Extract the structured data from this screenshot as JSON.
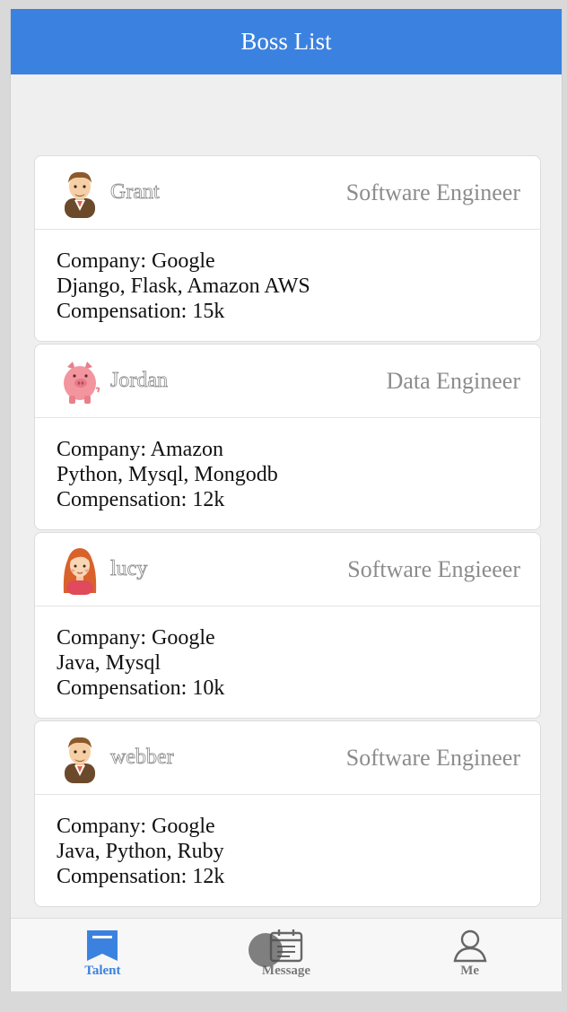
{
  "header": {
    "title": "Boss List"
  },
  "bosses": [
    {
      "name": "Grant",
      "title": "Software Engineer",
      "company": "Company: Google",
      "skills": "Django, Flask, Amazon AWS",
      "compensation": "Compensation: 15k",
      "avatar": "man-avatar-icon"
    },
    {
      "name": "Jordan",
      "title": "Data Engineer",
      "company": "Company: Amazon",
      "skills": "Python, Mysql, Mongodb",
      "compensation": "Compensation: 12k",
      "avatar": "pig-avatar-icon"
    },
    {
      "name": "lucy",
      "title": "Software Engieeer",
      "company": "Company: Google",
      "skills": "Java, Mysql",
      "compensation": "Compensation: 10k",
      "avatar": "woman-avatar-icon"
    },
    {
      "name": "webber",
      "title": "Software Engineer",
      "company": "Company: Google",
      "skills": "Java, Python, Ruby",
      "compensation": "Compensation: 12k",
      "avatar": "man-avatar-icon"
    }
  ],
  "tabbar": {
    "tabs": [
      {
        "label": "Talent",
        "icon": "bookmark-icon",
        "active": true
      },
      {
        "label": "Message",
        "icon": "message-calendar-icon",
        "active": false
      },
      {
        "label": "Me",
        "icon": "user-icon",
        "active": false
      }
    ]
  },
  "colors": {
    "brand": "#3b82e0",
    "tab_inactive": "#7a7a7a",
    "title_gray": "#8c8c8c"
  }
}
